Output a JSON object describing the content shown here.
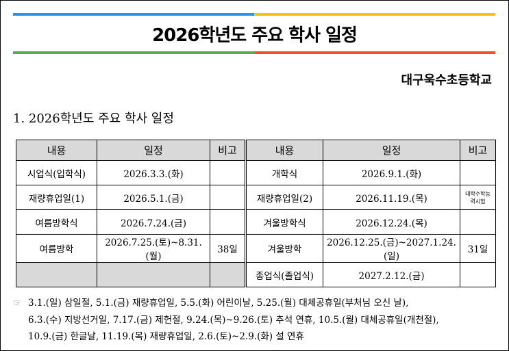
{
  "header": {
    "title": "2026학년도 주요 학사 일정",
    "school": "대구욱수초등학교"
  },
  "section": {
    "heading": "1. 2026학년도 주요 학사 일정"
  },
  "table": {
    "header": [
      "내용",
      "일정",
      "비고",
      "내용",
      "일정",
      "비고"
    ],
    "left_rows": [
      {
        "content": "시업식(입학식)",
        "date": "2026.3.3.(화)"
      },
      {
        "content": "재량휴업일(1)",
        "date": "2026.5.1.(금)"
      },
      {
        "content": "여름방학식",
        "date": "2026.7.24.(금)"
      },
      {
        "content": "여름방학",
        "date": "2026.7.25.(토)~8.31.(월)",
        "note": "38일"
      }
    ],
    "right_rows": [
      {
        "content": "개학식",
        "date": "2026.9.1.(화)"
      },
      {
        "content": "재량휴업일(2)",
        "date": "2026.11.19.(목)",
        "note": "대학수학능력시험"
      },
      {
        "content": "겨울방학식",
        "date": "2026.12.24.(목)"
      },
      {
        "content": "겨울방학",
        "date": "2026.12.25.(금)~2027.1.24.(일)",
        "note": "31일"
      },
      {
        "content": "종업식(졸업식)",
        "date": "2027.2.12.(금)"
      }
    ]
  },
  "notes": {
    "marker": "☞",
    "lines": [
      "3.1.(일) 삼일절, 5.1.(금) 재량휴업일, 5.5.(화) 어린이날, 5.25.(월) 대체공휴일(부처님 오신 날),",
      "6.3.(수) 지방선거일, 7.17.(금) 제헌절, 9.24.(목)~9.26.(토) 추석 연휴, 10.5.(월) 대체공휴일(개천절),",
      "10.9.(금) 한글날, 11.19.(목) 재량휴업일, 2.6.(토)~2.9.(화) 설 연휴"
    ]
  }
}
